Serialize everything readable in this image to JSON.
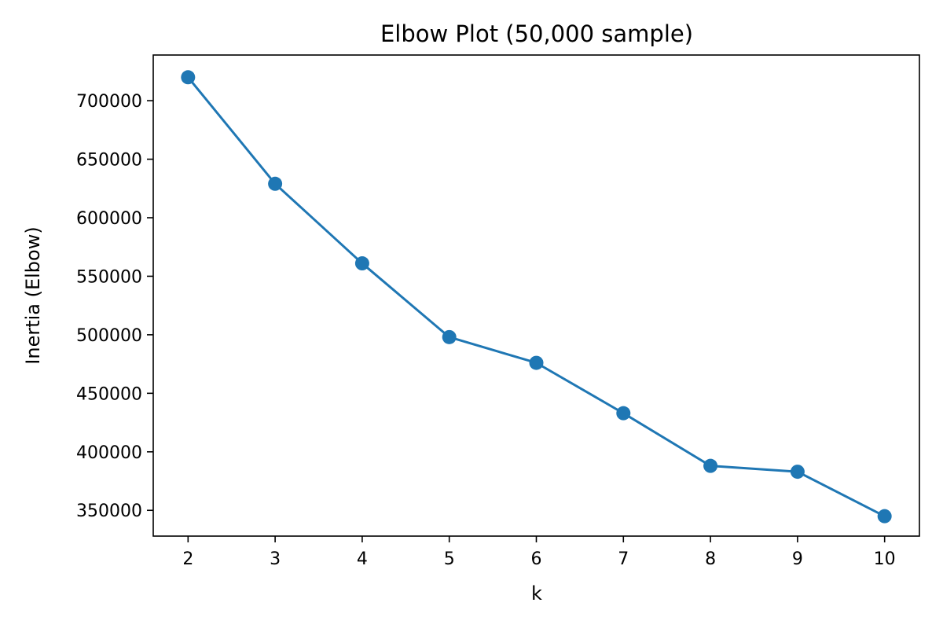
{
  "chart_data": {
    "type": "line",
    "title": "Elbow Plot (50,000 sample)",
    "xlabel": "k",
    "ylabel": "Inertia (Elbow)",
    "x": [
      2,
      3,
      4,
      5,
      6,
      7,
      8,
      9,
      10
    ],
    "series": [
      {
        "values": [
          720000,
          629000,
          561000,
          498000,
          476000,
          433000,
          388000,
          383000,
          345000
        ],
        "color": "#1f77b4",
        "marker": "circle"
      }
    ],
    "xticks": [
      2,
      3,
      4,
      5,
      6,
      7,
      8,
      9,
      10
    ],
    "yticks": [
      350000,
      400000,
      450000,
      500000,
      550000,
      600000,
      650000,
      700000
    ],
    "xlim": [
      1.6,
      10.4
    ],
    "ylim": [
      328000,
      739000
    ],
    "grid": false,
    "legend": "none"
  }
}
